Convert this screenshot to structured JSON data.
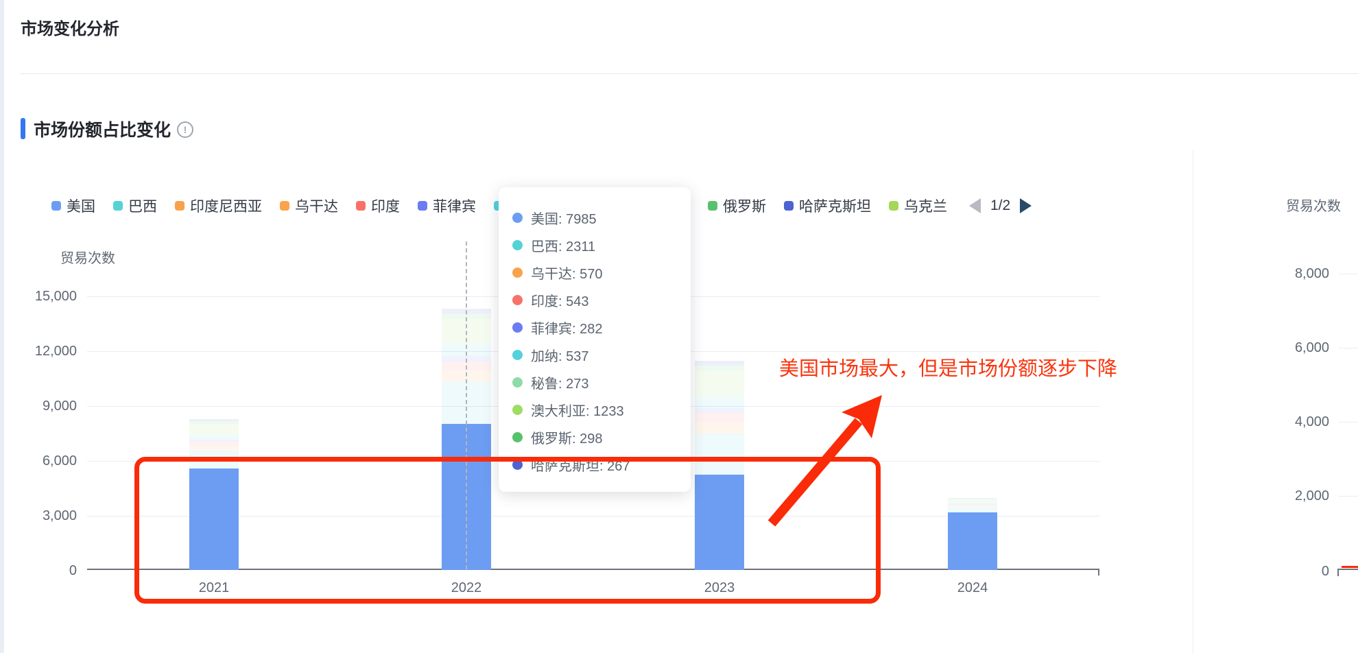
{
  "page": {
    "title": "市场变化分析"
  },
  "section": {
    "title": "市场份额占比变化",
    "info_icon": "exclamation-circle",
    "accent_color": "#3577f1"
  },
  "legend": {
    "items": [
      {
        "label": "美国",
        "color": "#6c9df2"
      },
      {
        "label": "巴西",
        "color": "#54d2d4"
      },
      {
        "label": "印度尼西亚",
        "color": "#f9a14e"
      },
      {
        "label": "乌干达",
        "color": "#f9a44c"
      },
      {
        "label": "印度",
        "color": "#f87268"
      },
      {
        "label": "菲律宾",
        "color": "#6a7cf0"
      },
      {
        "label": "加纳",
        "color": "#56d0dc"
      },
      {
        "label": "秘鲁",
        "color": "#8edbaa"
      },
      {
        "label": "澳大利亚",
        "color": "#9edc64"
      },
      {
        "label": "俄罗斯",
        "color": "#58c16d"
      },
      {
        "label": "哈萨克斯坦",
        "color": "#4d63d2"
      },
      {
        "label": "乌克兰",
        "color": "#a3d956"
      }
    ],
    "pager": {
      "label": "1/2"
    }
  },
  "left_axis": {
    "title": "贸易次数",
    "ticks": [
      "15,000",
      "12,000",
      "9,000",
      "6,000",
      "3,000",
      "0"
    ]
  },
  "right_axis": {
    "title": "贸易次数",
    "ticks": [
      "8,000",
      "6,000",
      "4,000",
      "2,000",
      "0"
    ]
  },
  "x_axis": {
    "labels": [
      "2021",
      "2022",
      "2023",
      "2024"
    ]
  },
  "tooltip": {
    "rows": [
      {
        "name": "美国",
        "value": "7985",
        "color": "#6c9df2"
      },
      {
        "name": "巴西",
        "value": "2311",
        "color": "#54d2d4"
      },
      {
        "name": "乌干达",
        "value": "570",
        "color": "#f9a44c"
      },
      {
        "name": "印度",
        "value": "543",
        "color": "#f87268"
      },
      {
        "name": "菲律宾",
        "value": "282",
        "color": "#6a7cf0"
      },
      {
        "name": "加纳",
        "value": "537",
        "color": "#56d0dc"
      },
      {
        "name": "秘鲁",
        "value": "273",
        "color": "#8edbaa"
      },
      {
        "name": "澳大利亚",
        "value": "1233",
        "color": "#9edc64"
      },
      {
        "name": "俄罗斯",
        "value": "298",
        "color": "#58c16d"
      },
      {
        "name": "哈萨克斯坦",
        "value": "267",
        "color": "#4d63d2"
      }
    ]
  },
  "annotation": {
    "text": "美国市场最大，但是市场份额逐步下降",
    "color": "#f9350e"
  },
  "chart_data": {
    "type": "bar",
    "stacked": true,
    "title": "市场份额占比变化",
    "categories": [
      "2021",
      "2022",
      "2023",
      "2024"
    ],
    "ylabel_left": "贸易次数",
    "ylabel_right": "贸易次数",
    "ylim_left": [
      0,
      15000
    ],
    "ylim_right": [
      0,
      8000
    ],
    "grid": true,
    "legend_position": "top",
    "highlighted_series": "美国",
    "series": [
      {
        "name": "美国",
        "color": "#6c9df2",
        "values": [
          5550,
          7985,
          5200,
          3150
        ]
      },
      {
        "name": "巴西",
        "color": "#54d2d4",
        "values": [
          990,
          2311,
          2280,
          290
        ]
      },
      {
        "name": "印度尼西亚",
        "color": "#f9a14e",
        "values": [
          0,
          0,
          0,
          0
        ]
      },
      {
        "name": "乌干达",
        "color": "#f9a44c",
        "values": [
          245,
          570,
          560,
          70
        ]
      },
      {
        "name": "印度",
        "color": "#f87268",
        "values": [
          230,
          543,
          535,
          70
        ]
      },
      {
        "name": "菲律宾",
        "color": "#6a7cf0",
        "values": [
          120,
          282,
          280,
          35
        ]
      },
      {
        "name": "加纳",
        "color": "#56d0dc",
        "values": [
          230,
          537,
          530,
          65
        ]
      },
      {
        "name": "秘鲁",
        "color": "#8edbaa",
        "values": [
          115,
          273,
          270,
          35
        ]
      },
      {
        "name": "澳大利亚",
        "color": "#9edc64",
        "values": [
          525,
          1233,
          1220,
          155
        ]
      },
      {
        "name": "俄罗斯",
        "color": "#58c16d",
        "values": [
          125,
          298,
          295,
          35
        ]
      },
      {
        "name": "哈萨克斯坦",
        "color": "#4d63d2",
        "values": [
          115,
          267,
          265,
          35
        ]
      },
      {
        "name": "乌克兰",
        "color": "#a3d956",
        "values": [
          0,
          0,
          0,
          0
        ]
      }
    ],
    "totals_estimated": [
      8245,
      14299,
      11435,
      3940
    ],
    "hovered_category": "2022"
  }
}
